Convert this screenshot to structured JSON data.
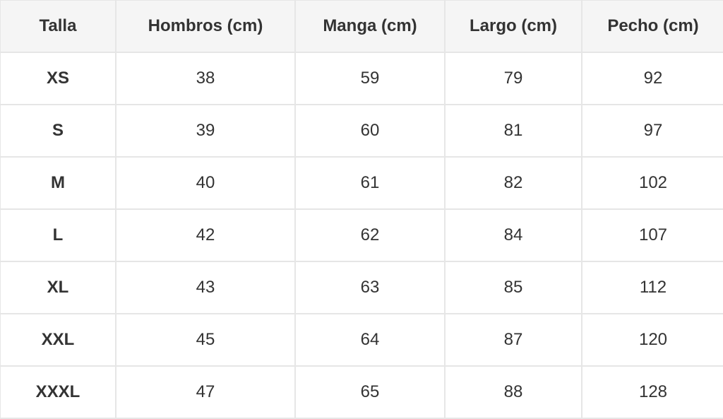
{
  "table": {
    "headers": [
      "Talla",
      "Hombros (cm)",
      "Manga (cm)",
      "Largo (cm)",
      "Pecho (cm)"
    ],
    "rows": [
      [
        "XS",
        "38",
        "59",
        "79",
        "92"
      ],
      [
        "S",
        "39",
        "60",
        "81",
        "97"
      ],
      [
        "M",
        "40",
        "61",
        "82",
        "102"
      ],
      [
        "L",
        "42",
        "62",
        "84",
        "107"
      ],
      [
        "XL",
        "43",
        "63",
        "85",
        "112"
      ],
      [
        "XXL",
        "45",
        "64",
        "87",
        "120"
      ],
      [
        "XXXL",
        "47",
        "65",
        "88",
        "128"
      ]
    ]
  },
  "colors": {
    "header_bg": "#f5f5f5",
    "border": "#e6e6e6",
    "text": "#333333"
  }
}
